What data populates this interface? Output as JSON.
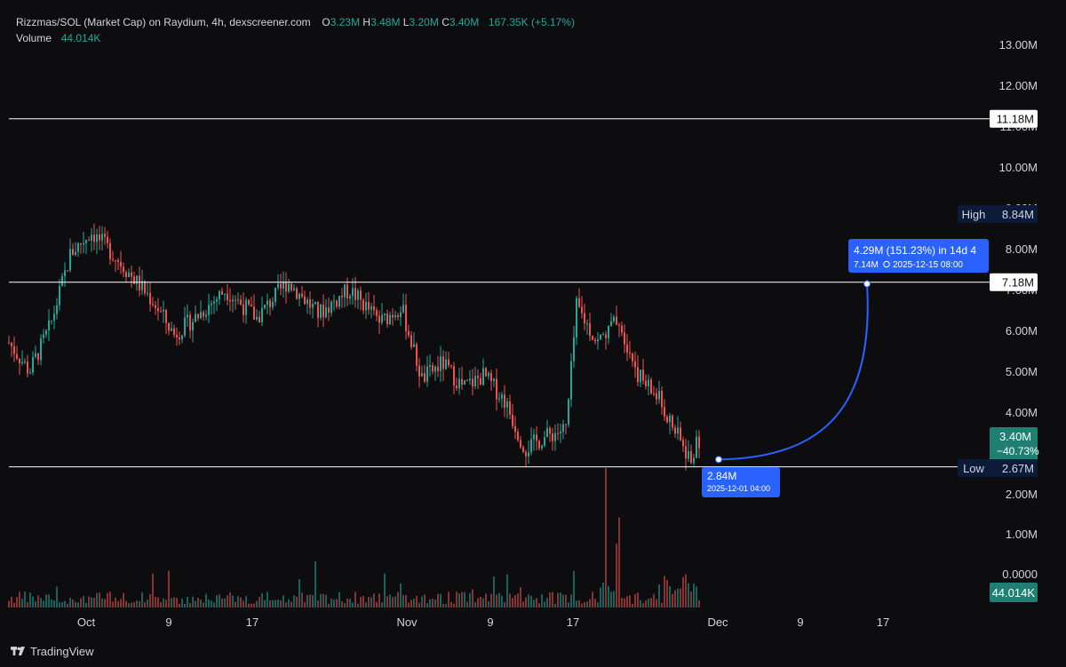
{
  "header": {
    "symbol": "Rizzmas/SOL (Market Cap) on Raydium, 4h, dexscreener.com",
    "ohlc": [
      {
        "key": "O",
        "value": "3.23M"
      },
      {
        "key": "H",
        "value": "3.48M"
      },
      {
        "key": "L",
        "value": "3.20M"
      },
      {
        "key": "C",
        "value": "3.40M"
      }
    ],
    "change": "167.35K (+5.17%)",
    "volume_label": "Volume",
    "volume_value": "44.014K"
  },
  "footer": {
    "brand": "TradingView"
  },
  "colors": {
    "up": "#26a69a",
    "down": "#ef5350",
    "background": "#0d0d0f",
    "projection": "#2962ff",
    "line": "#ffffff"
  },
  "chart_data": {
    "type": "candlestick",
    "timeframe": "4h",
    "y_unit": "market cap",
    "ylim": [
      2.0,
      13.4
    ],
    "y_ticks": [
      "13.00M",
      "12.00M",
      "11.00M",
      "10.00M",
      "9.00M",
      "8.00M",
      "7.00M",
      "6.00M",
      "5.00M",
      "4.00M",
      "3.00M",
      "2.00M",
      "1.00M",
      "0.0000"
    ],
    "x_ticks": [
      "Oct",
      "9",
      "17",
      "Nov",
      "9",
      "17",
      "Dec",
      "9",
      "17"
    ],
    "horizontal_lines": [
      {
        "value": 11.18,
        "label": "11.18M"
      },
      {
        "value": 7.18,
        "label": "7.18M"
      },
      {
        "value": 2.66,
        "label": "2.66M"
      }
    ],
    "markers": [
      {
        "tag": "High",
        "value": 8.84,
        "label": "8.84M"
      },
      {
        "tag": "Low",
        "value": 2.67,
        "label": "2.67M"
      }
    ],
    "last_price": {
      "value": 3.4,
      "label": "3.40M",
      "change": "−40.73%"
    },
    "volume_last": "44.014K",
    "projection": {
      "from": {
        "value": 2.84,
        "label": "2.84M",
        "time": "2025-12-01 04:00"
      },
      "to": {
        "value": 7.14,
        "label": "7.14M",
        "time": "2025-12-15  08:00"
      },
      "change": "4.29M (151.23%) in 14d 4"
    },
    "price_path_approx": [
      {
        "date": "2025-09-26",
        "value": 5.7
      },
      {
        "date": "2025-09-28",
        "value": 5.0
      },
      {
        "date": "2025-09-30",
        "value": 6.1
      },
      {
        "date": "2025-10-02",
        "value": 7.9
      },
      {
        "date": "2025-10-04",
        "value": 8.4
      },
      {
        "date": "2025-10-06",
        "value": 7.9
      },
      {
        "date": "2025-10-08",
        "value": 7.3
      },
      {
        "date": "2025-10-10",
        "value": 6.7
      },
      {
        "date": "2025-10-12",
        "value": 5.9
      },
      {
        "date": "2025-10-14",
        "value": 6.3
      },
      {
        "date": "2025-10-17",
        "value": 7.0
      },
      {
        "date": "2025-10-20",
        "value": 6.3
      },
      {
        "date": "2025-10-23",
        "value": 7.2
      },
      {
        "date": "2025-10-26",
        "value": 6.4
      },
      {
        "date": "2025-10-29",
        "value": 7.0
      },
      {
        "date": "2025-11-01",
        "value": 6.2
      },
      {
        "date": "2025-11-03",
        "value": 6.6
      },
      {
        "date": "2025-11-05",
        "value": 4.8
      },
      {
        "date": "2025-11-07",
        "value": 5.2
      },
      {
        "date": "2025-11-09",
        "value": 4.6
      },
      {
        "date": "2025-11-11",
        "value": 4.9
      },
      {
        "date": "2025-11-13",
        "value": 4.3
      },
      {
        "date": "2025-11-15",
        "value": 3.1
      },
      {
        "date": "2025-11-17",
        "value": 3.4
      },
      {
        "date": "2025-11-19",
        "value": 3.6
      },
      {
        "date": "2025-11-20",
        "value": 6.6
      },
      {
        "date": "2025-11-22",
        "value": 5.7
      },
      {
        "date": "2025-11-24",
        "value": 6.3
      },
      {
        "date": "2025-11-26",
        "value": 4.9
      },
      {
        "date": "2025-11-28",
        "value": 4.3
      },
      {
        "date": "2025-11-30",
        "value": 3.3
      },
      {
        "date": "2025-12-01",
        "value": 2.84
      },
      {
        "date": "2025-12-02",
        "value": 3.4
      }
    ]
  }
}
